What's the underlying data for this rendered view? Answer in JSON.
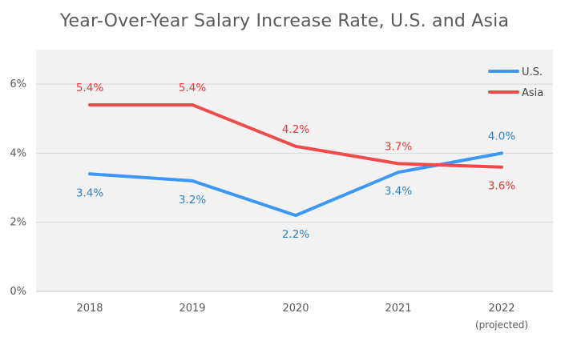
{
  "chart_data": {
    "type": "line",
    "title": "Year-Over-Year Salary Increase Rate, U.S. and Asia",
    "categories": [
      "2018",
      "2019",
      "2020",
      "2021",
      "2022"
    ],
    "category_subtitles": [
      "",
      "",
      "",
      "",
      "(projected)"
    ],
    "y_ticks": [
      "0%",
      "2%",
      "4%",
      "6%"
    ],
    "ylim": [
      0,
      7
    ],
    "grid": true,
    "legend_position": "top-right",
    "series": [
      {
        "name": "U.S.",
        "values": [
          3.4,
          3.2,
          2.2,
          3.45,
          4.0
        ],
        "labels": [
          "3.4%",
          "3.2%",
          "2.2%",
          "3.4%",
          "4.0%"
        ],
        "color": "#3d97f5",
        "label_color": "#2f7fc1"
      },
      {
        "name": "Asia",
        "values": [
          5.4,
          5.4,
          4.2,
          3.7,
          3.6
        ],
        "labels": [
          "5.4%",
          "5.4%",
          "4.2%",
          "3.7%",
          "3.6%"
        ],
        "color": "#f04b4b",
        "label_color": "#e53935"
      }
    ]
  }
}
